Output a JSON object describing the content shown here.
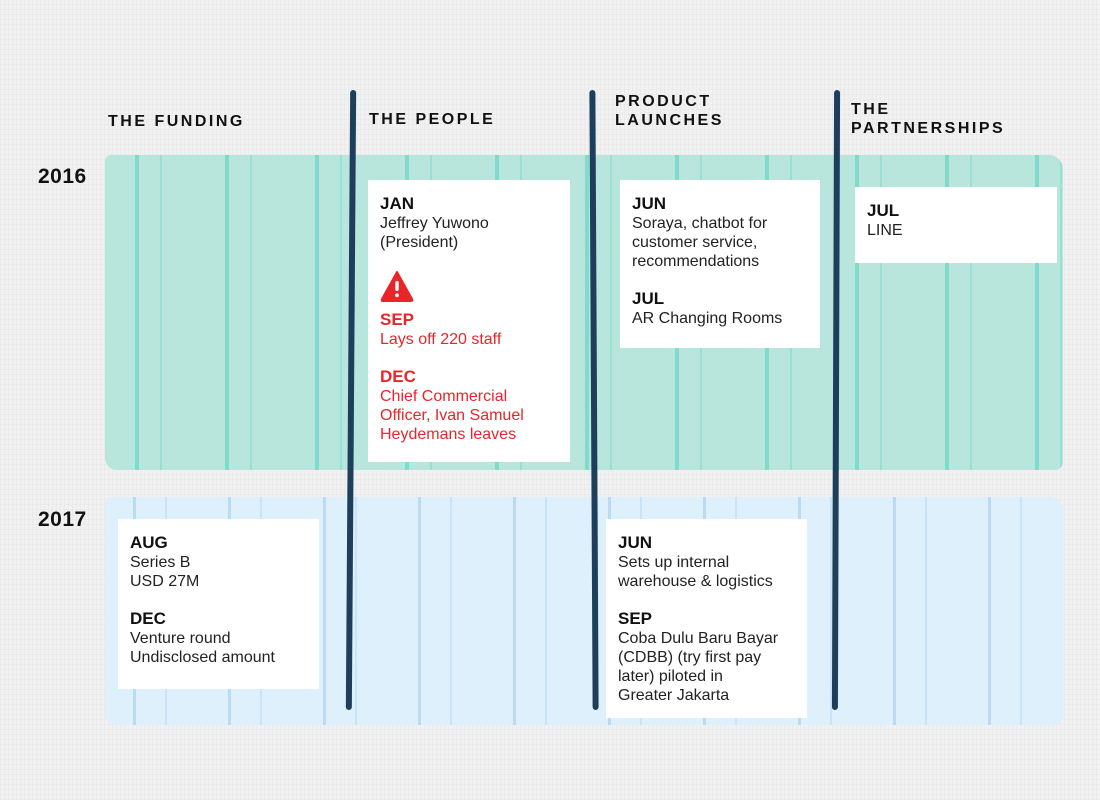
{
  "columns": {
    "funding": "THE FUNDING",
    "people": "THE PEOPLE",
    "products": "PRODUCT\nLAUNCHES",
    "partnerships": "THE\nPARTNERSHIPS"
  },
  "years": {
    "y2016": "2016",
    "y2017": "2017"
  },
  "colors": {
    "band_2016": "#b8e6dd",
    "band_2017": "#ddf0fb",
    "divider": "#1d3f5c",
    "alert": "#e8262a"
  },
  "people_2016": {
    "jan": {
      "month": "JAN",
      "detail": "Jeffrey Yuwono\n(President)"
    },
    "alert_icon": "warning-icon",
    "sep": {
      "month": "SEP",
      "detail": "Lays off 220 staff"
    },
    "dec": {
      "month": "DEC",
      "detail": "Chief Commercial\nOfficer, Ivan Samuel\nHeydemans leaves"
    }
  },
  "products_2016": {
    "jun": {
      "month": "JUN",
      "detail": "Soraya, chatbot for\ncustomer service,\nrecommendations"
    },
    "jul": {
      "month": "JUL",
      "detail": "AR Changing Rooms"
    }
  },
  "partnerships_2016": {
    "jul": {
      "month": "JUL",
      "detail": "LINE"
    }
  },
  "funding_2017": {
    "aug": {
      "month": "AUG",
      "detail": "Series B\nUSD 27M"
    },
    "dec": {
      "month": "DEC",
      "detail": "Venture round\nUndisclosed amount"
    }
  },
  "products_2017": {
    "jun": {
      "month": "JUN",
      "detail": "Sets up internal\nwarehouse & logistics"
    },
    "sep": {
      "month": "SEP",
      "detail": "Coba Dulu Baru Bayar\n(CDBB) (try first pay\nlater) piloted in\nGreater Jakarta"
    }
  }
}
